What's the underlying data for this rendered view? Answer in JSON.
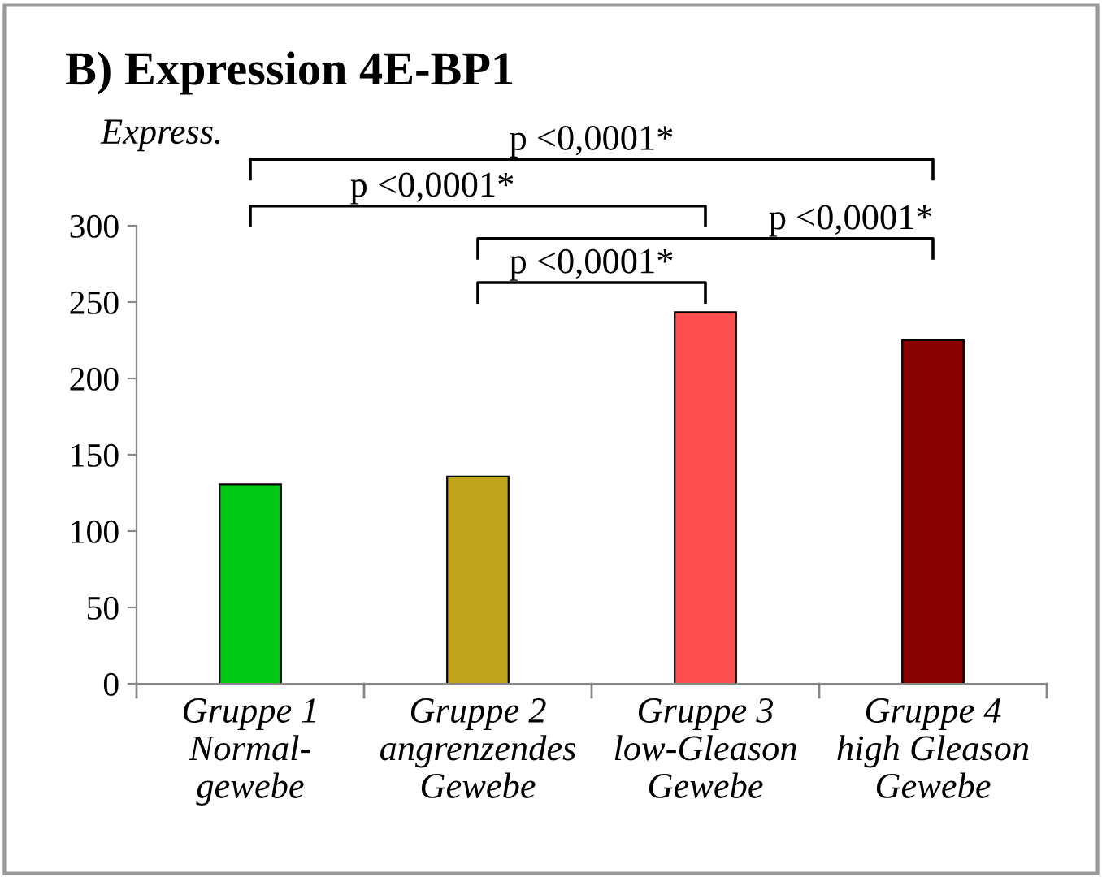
{
  "chart_data": {
    "type": "bar",
    "title": "B) Expression 4E-BP1",
    "ylabel": "Express.",
    "categories": [
      "Gruppe 1\nNormal-\ngewebe",
      "Gruppe 2\nangrenzendes\nGewebe",
      "Gruppe 3\nlow-Gleason\nGewebe",
      "Gruppe 4\nhigh Gleason\nGewebe"
    ],
    "values": [
      130.7,
      135.7,
      243.4,
      225
    ],
    "colors": [
      "#00c814",
      "#c0a41c",
      "#ff5050",
      "#8b0000"
    ],
    "ylim": [
      0,
      300
    ],
    "yticks": [
      0,
      50,
      100,
      150,
      200,
      250,
      300
    ],
    "grid": false,
    "annotations": [
      "p <0,0001*",
      "p <0,0001*",
      "p <0,0001*",
      "p <0,0001*"
    ]
  }
}
